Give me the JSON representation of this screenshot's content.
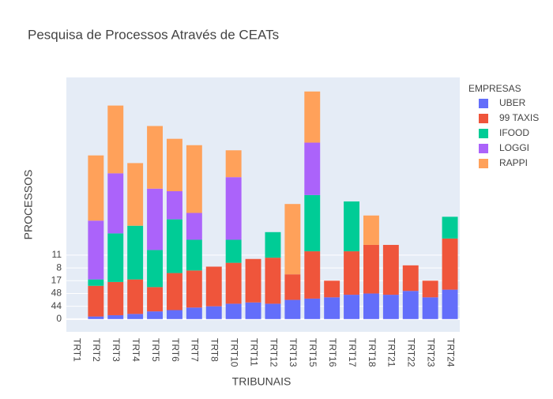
{
  "chart_data": {
    "type": "stacked_bar",
    "title": "Pesquisa de Processos Através de CEATs",
    "x_label": "TRIBUNAIS",
    "y_label": "PROCESSOS",
    "legend_title": "EMPRESAS",
    "categories": [
      "TRT1",
      "TRT2",
      "TRT3",
      "TRT4",
      "TRT5",
      "TRT6",
      "TRT7",
      "TRT8",
      "TRT10",
      "TRT11",
      "TRT12",
      "TRT13",
      "TRT15",
      "TRT16",
      "TRT17",
      "TRT18",
      "TRT21",
      "TRT22",
      "TRT23",
      "TRT24"
    ],
    "series": [
      {
        "name": "UBER",
        "color": "#636efa",
        "values": [
          0,
          0.2,
          0.3,
          0.4,
          0.6,
          0.7,
          0.9,
          1.0,
          1.2,
          1.3,
          1.2,
          1.5,
          1.6,
          1.7,
          1.9,
          2.0,
          1.9,
          2.2,
          1.7,
          2.3
        ]
      },
      {
        "name": "99 TAXIS",
        "color": "#ef553b",
        "values": [
          0,
          2.4,
          2.6,
          2.7,
          1.9,
          2.9,
          2.9,
          3.1,
          3.2,
          3.4,
          3.6,
          2.0,
          3.7,
          1.3,
          3.4,
          3.8,
          3.9,
          2.0,
          1.3,
          4.0
        ]
      },
      {
        "name": "IFOOD",
        "color": "#00cc96",
        "values": [
          0,
          0.5,
          3.8,
          4.2,
          2.9,
          4.2,
          2.4,
          0,
          1.8,
          0,
          2.0,
          0,
          4.4,
          0,
          3.9,
          0,
          0,
          0,
          0,
          1.7
        ]
      },
      {
        "name": "LOGGI",
        "color": "#ab63fa",
        "values": [
          0,
          4.6,
          4.7,
          0,
          4.8,
          2.2,
          2.1,
          0,
          4.9,
          0,
          0,
          0,
          4.1,
          0,
          0,
          0,
          0,
          0,
          0,
          0
        ]
      },
      {
        "name": "RAPPI",
        "color": "#ffa15a",
        "values": [
          0,
          5.1,
          5.3,
          4.9,
          4.9,
          4.1,
          5.3,
          0,
          2.1,
          0,
          0,
          5.5,
          4.0,
          0,
          0,
          2.3,
          0,
          0,
          0,
          0
        ]
      }
    ],
    "ylim": [
      -1,
      18.9
    ],
    "yticks": [
      {
        "value": 0,
        "label": "0"
      },
      {
        "value": 1,
        "label": "44"
      },
      {
        "value": 2,
        "label": "48"
      },
      {
        "value": 3,
        "label": "17"
      },
      {
        "value": 4,
        "label": "8"
      },
      {
        "value": 5,
        "label": "11"
      }
    ],
    "grid": true,
    "legend": "right"
  }
}
